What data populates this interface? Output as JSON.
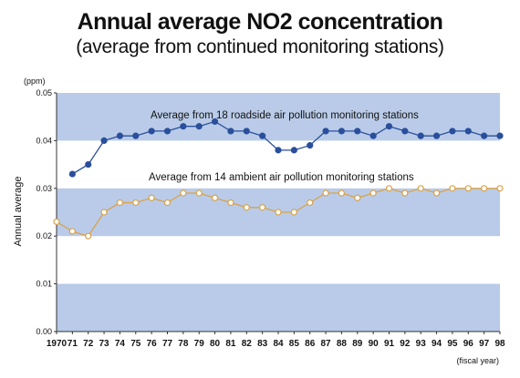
{
  "chart_data": {
    "type": "line",
    "title": "Annual average NO2 concentration",
    "subtitle": "(average from continued monitoring stations)",
    "ylabel": "Annual average",
    "yunit": "(ppm)",
    "xunit": "(fiscal year)",
    "ylim": [
      0,
      0.05
    ],
    "yticks": [
      "0.00",
      "0.01",
      "0.02",
      "0.03",
      "0.04",
      "0.05"
    ],
    "categories": [
      "1970",
      "71",
      "72",
      "73",
      "74",
      "75",
      "76",
      "77",
      "78",
      "79",
      "80",
      "81",
      "82",
      "83",
      "84",
      "85",
      "86",
      "87",
      "88",
      "89",
      "90",
      "91",
      "92",
      "93",
      "94",
      "95",
      "96",
      "97",
      "98"
    ],
    "band_color": "#b9cbe8",
    "series": [
      {
        "name": "Average from 18 roadside air pollution monitoring stations",
        "color": "#2a4f9c",
        "marker": "filled-circle",
        "values": [
          null,
          0.033,
          0.035,
          0.04,
          0.041,
          0.041,
          0.042,
          0.042,
          0.043,
          0.043,
          0.044,
          0.042,
          0.042,
          0.041,
          0.038,
          0.038,
          0.039,
          0.042,
          0.042,
          0.042,
          0.041,
          0.043,
          0.042,
          0.041,
          0.041,
          0.042,
          0.042,
          0.041,
          0.041
        ]
      },
      {
        "name": "Average from 14 ambient air pollution monitoring stations",
        "color": "#d9a24a",
        "marker": "open-circle",
        "values": [
          0.023,
          0.021,
          0.02,
          0.025,
          0.027,
          0.027,
          0.028,
          0.027,
          0.029,
          0.029,
          0.028,
          0.027,
          0.026,
          0.026,
          0.025,
          0.025,
          0.027,
          0.029,
          0.029,
          0.028,
          0.029,
          0.03,
          0.029,
          0.03,
          0.029,
          0.03,
          0.03,
          0.03,
          0.03
        ]
      }
    ]
  }
}
